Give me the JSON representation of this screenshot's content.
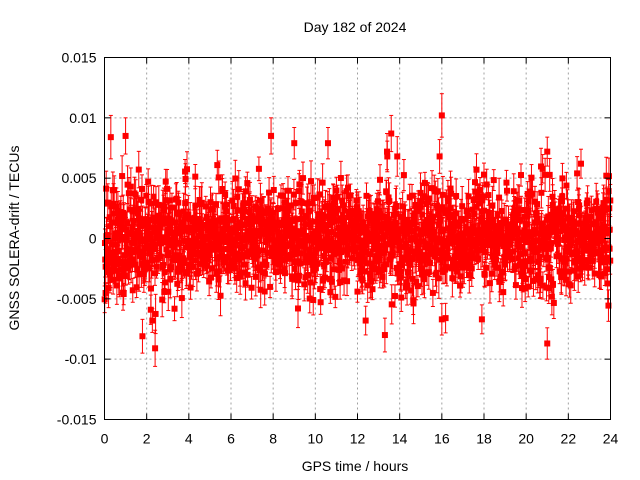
{
  "chart_data": {
    "type": "scatter",
    "title": "Day 182 of 2024",
    "xlabel": "GPS time / hours",
    "ylabel": "GNSS SOLERA-drift / TECUs",
    "xlim": [
      0,
      24
    ],
    "ylim": [
      -0.015,
      0.015
    ],
    "grid": true,
    "legend": "none",
    "x_ticks": [
      "0",
      "2",
      "4",
      "6",
      "8",
      "10",
      "12",
      "14",
      "16",
      "18",
      "20",
      "22",
      "24"
    ],
    "y_ticks": [
      "0.015",
      "0.01",
      "0.005",
      "0",
      "-0.005",
      "-0.01",
      "-0.015"
    ],
    "series_color": "#ff0000",
    "dense_band": {
      "x_range": [
        0,
        24
      ],
      "typical_spread": 0.0028,
      "typical_error": 0.0012
    },
    "notable_points": [
      {
        "x": 0.3,
        "y": 0.0084,
        "err": 0.0018
      },
      {
        "x": 1.0,
        "y": 0.0085,
        "err": 0.0015
      },
      {
        "x": 1.8,
        "y": -0.0081,
        "err": 0.0014
      },
      {
        "x": 2.4,
        "y": -0.0091,
        "err": 0.0015
      },
      {
        "x": 7.9,
        "y": 0.0085,
        "err": 0.0015
      },
      {
        "x": 9.0,
        "y": 0.0079,
        "err": 0.0013
      },
      {
        "x": 10.6,
        "y": 0.0079,
        "err": 0.0013
      },
      {
        "x": 13.3,
        "y": -0.008,
        "err": 0.0014
      },
      {
        "x": 13.4,
        "y": 0.0072,
        "err": 0.0015
      },
      {
        "x": 13.6,
        "y": 0.0087,
        "err": 0.0015
      },
      {
        "x": 16.0,
        "y": 0.0102,
        "err": 0.0018
      },
      {
        "x": 16.0,
        "y": -0.0067,
        "err": 0.0013
      },
      {
        "x": 17.9,
        "y": -0.0067,
        "err": 0.0012
      },
      {
        "x": 21.0,
        "y": -0.0087,
        "err": 0.0013
      },
      {
        "x": 21.0,
        "y": 0.0072,
        "err": 0.0012
      },
      {
        "x": 22.6,
        "y": 0.0062,
        "err": 0.0012
      }
    ]
  }
}
